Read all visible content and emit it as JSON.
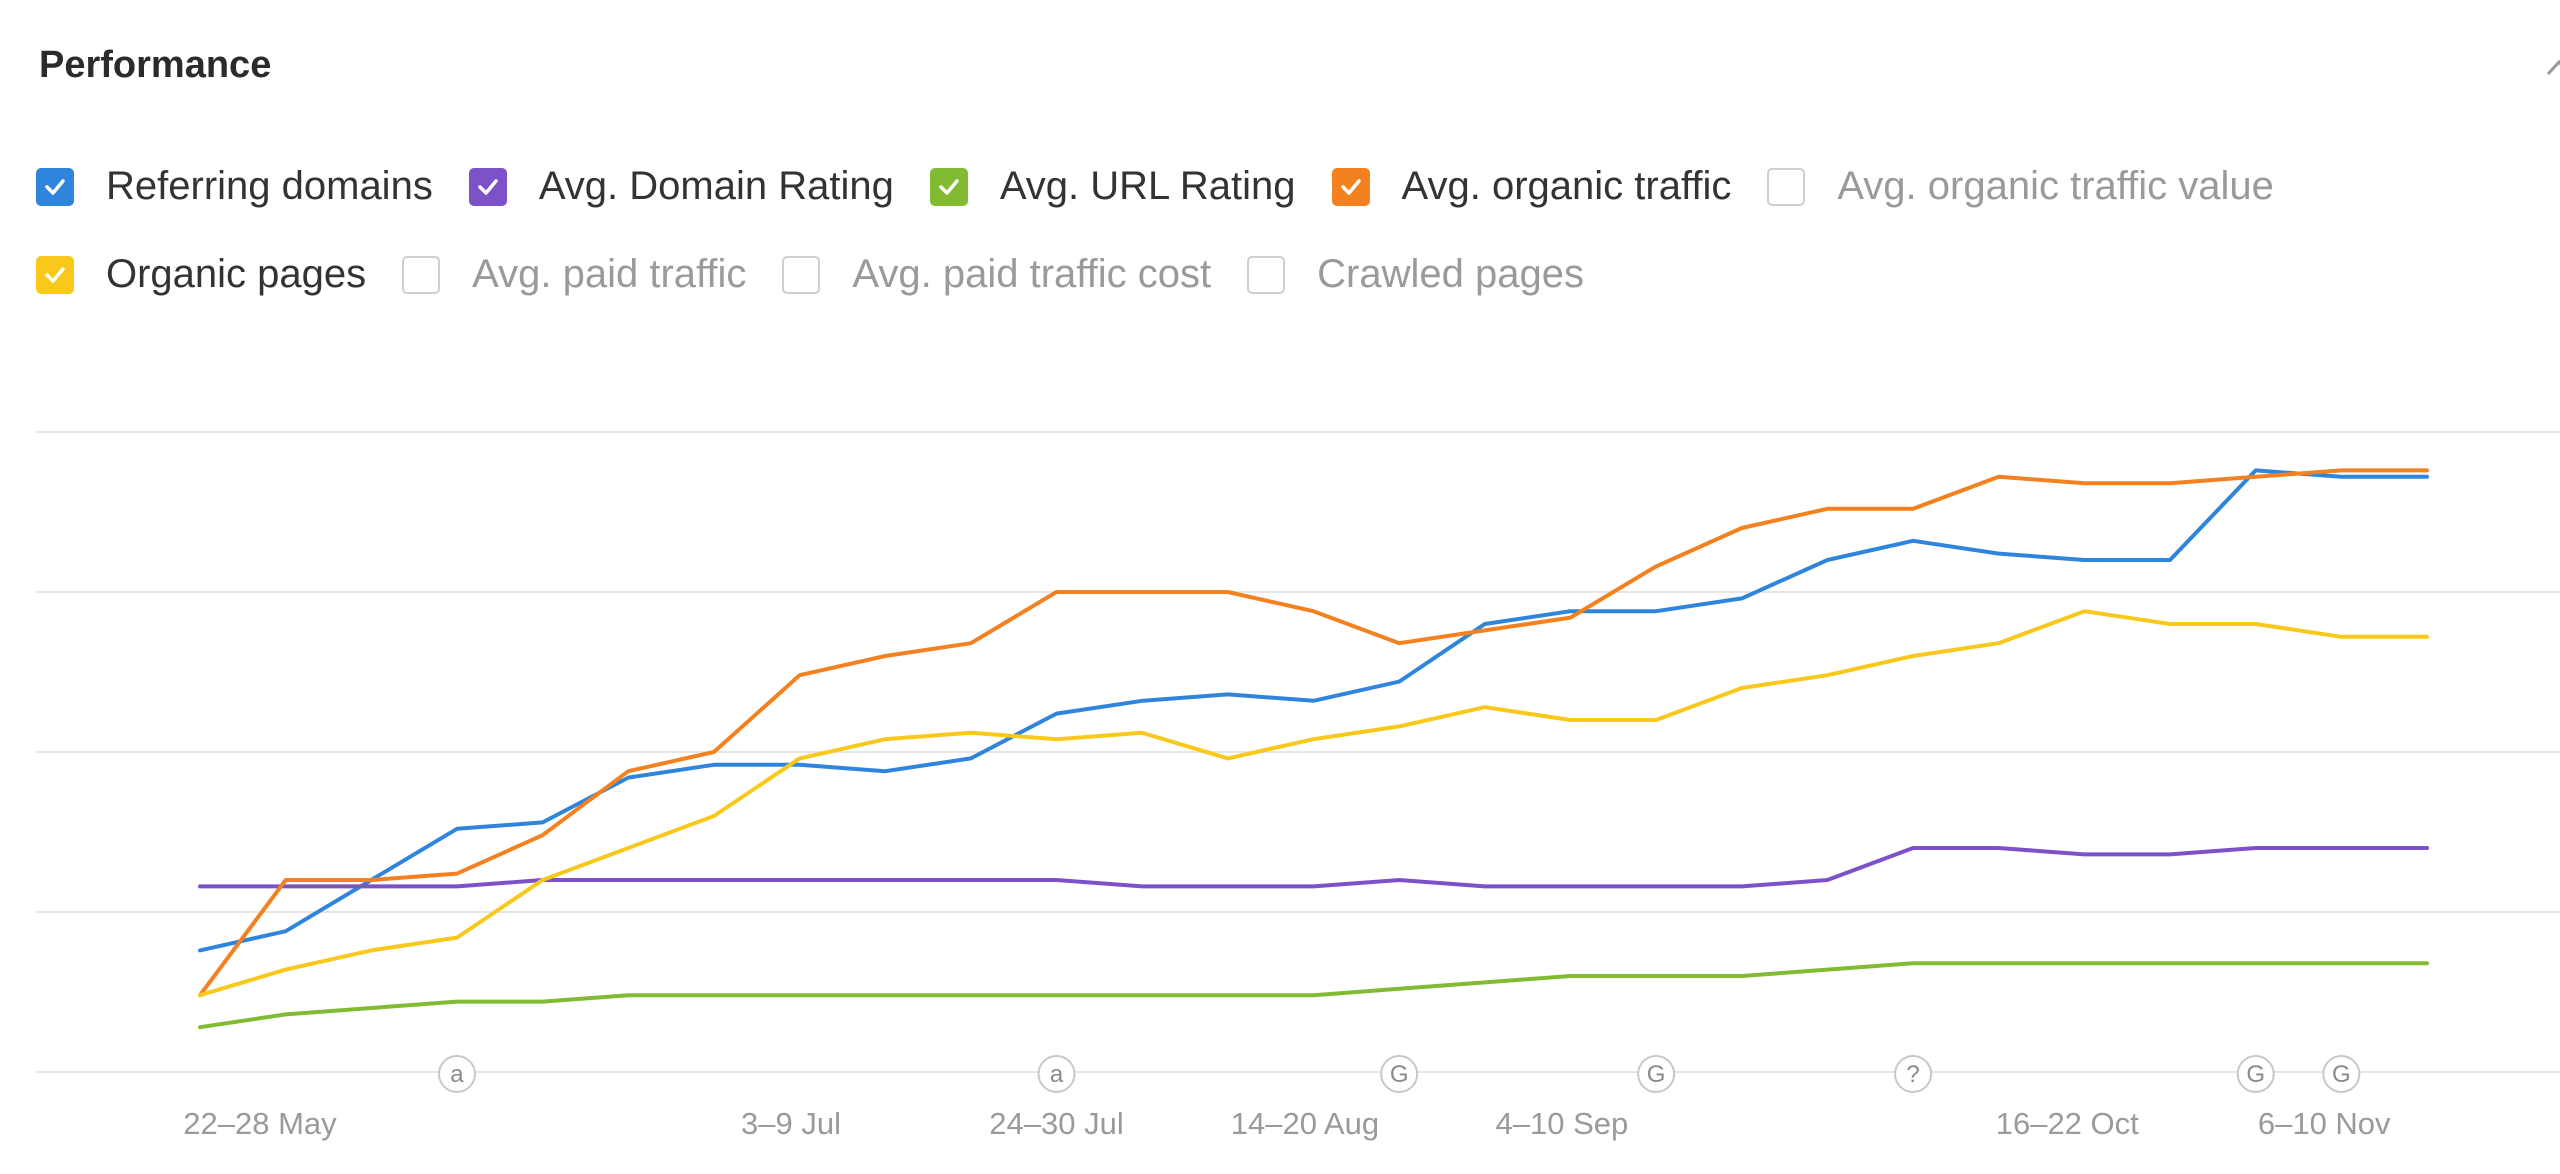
{
  "panel": {
    "title": "Performance",
    "collapse_icon": "chevron-up-icon"
  },
  "legend": [
    {
      "label": "Referring domains",
      "checked": true,
      "color": "#2f85dc"
    },
    {
      "label": "Avg. Domain Rating",
      "checked": true,
      "color": "#7d52c9"
    },
    {
      "label": "Avg. URL Rating",
      "checked": true,
      "color": "#80bb32"
    },
    {
      "label": "Avg. organic traffic",
      "checked": true,
      "color": "#f4811f"
    },
    {
      "label": "Avg. organic traffic value",
      "checked": false,
      "color": "#cfcfcf"
    },
    {
      "label": "Organic pages",
      "checked": true,
      "color": "#f8c81a"
    },
    {
      "label": "Avg. paid traffic",
      "checked": false,
      "color": "#cfcfcf"
    },
    {
      "label": "Avg. paid traffic cost",
      "checked": false,
      "color": "#cfcfcf"
    },
    {
      "label": "Crawled pages",
      "checked": false,
      "color": "#cfcfcf"
    }
  ],
  "chart_data": {
    "type": "line",
    "grid": true,
    "ylim": [
      0,
      100
    ],
    "x": [
      0,
      1,
      2,
      3,
      4,
      5,
      6,
      7,
      8,
      9,
      10,
      11,
      12,
      13,
      14,
      15,
      16,
      17,
      18,
      19,
      20,
      21,
      22,
      23,
      24,
      25,
      26
    ],
    "tick_labels": [
      {
        "x": 0.7,
        "label": "22–28 May"
      },
      {
        "x": 6.9,
        "label": "3–9 Jul"
      },
      {
        "x": 10.0,
        "label": "24–30 Jul"
      },
      {
        "x": 12.9,
        "label": "14–20 Aug"
      },
      {
        "x": 15.9,
        "label": "4–10 Sep"
      },
      {
        "x": 21.8,
        "label": "16–22 Oct"
      },
      {
        "x": 24.8,
        "label": "6–10 Nov"
      }
    ],
    "annotations": [
      {
        "x": 3,
        "symbol": "a"
      },
      {
        "x": 10,
        "symbol": "a"
      },
      {
        "x": 14,
        "symbol": "G"
      },
      {
        "x": 17,
        "symbol": "G"
      },
      {
        "x": 20,
        "symbol": "?"
      },
      {
        "x": 24,
        "symbol": "G"
      },
      {
        "x": 25,
        "symbol": "G"
      }
    ],
    "series": [
      {
        "name": "Referring domains",
        "color": "#2f85dc",
        "values": [
          19,
          22,
          30,
          38,
          39,
          46,
          48,
          48,
          47,
          49,
          56,
          58,
          59,
          58,
          61,
          70,
          72,
          72,
          74,
          80,
          83,
          81,
          80,
          80,
          94,
          93,
          93
        ]
      },
      {
        "name": "Avg. Domain Rating",
        "color": "#7d52c9",
        "values": [
          29,
          29,
          29,
          29,
          30,
          30,
          30,
          30,
          30,
          30,
          30,
          29,
          29,
          29,
          30,
          29,
          29,
          29,
          29,
          30,
          35,
          35,
          34,
          34,
          35,
          35,
          35
        ]
      },
      {
        "name": "Avg. URL Rating",
        "color": "#80bb32",
        "values": [
          7,
          9,
          10,
          11,
          11,
          12,
          12,
          12,
          12,
          12,
          12,
          12,
          12,
          12,
          13,
          14,
          15,
          15,
          15,
          16,
          17,
          17,
          17,
          17,
          17,
          17,
          17
        ]
      },
      {
        "name": "Avg. organic traffic",
        "color": "#f4811f",
        "values": [
          12,
          30,
          30,
          31,
          37,
          47,
          50,
          62,
          65,
          67,
          75,
          75,
          75,
          72,
          67,
          69,
          71,
          79,
          85,
          88,
          88,
          93,
          92,
          92,
          93,
          94,
          94
        ]
      },
      {
        "name": "Organic pages",
        "color": "#f8c81a",
        "values": [
          12,
          16,
          19,
          21,
          30,
          35,
          40,
          49,
          52,
          53,
          52,
          53,
          49,
          52,
          54,
          57,
          55,
          55,
          60,
          62,
          65,
          67,
          72,
          70,
          70,
          68,
          68
        ]
      }
    ]
  }
}
